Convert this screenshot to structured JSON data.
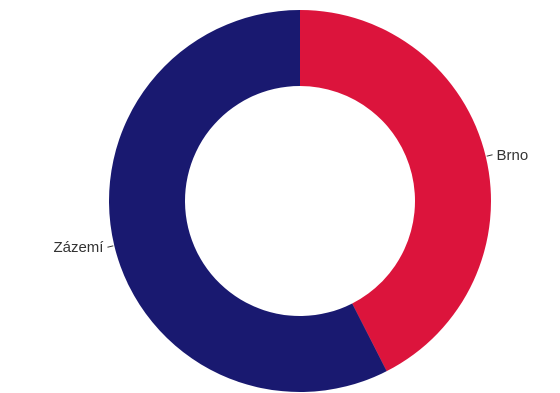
{
  "chart_data": {
    "type": "pie",
    "variant": "donut",
    "categories": [
      "Brno",
      "Zázemí"
    ],
    "values": [
      42.5,
      57.5
    ],
    "colors": [
      "#dc143c",
      "#191970"
    ],
    "start_angle_deg": 0,
    "direction": "clockwise",
    "legend": "none"
  }
}
